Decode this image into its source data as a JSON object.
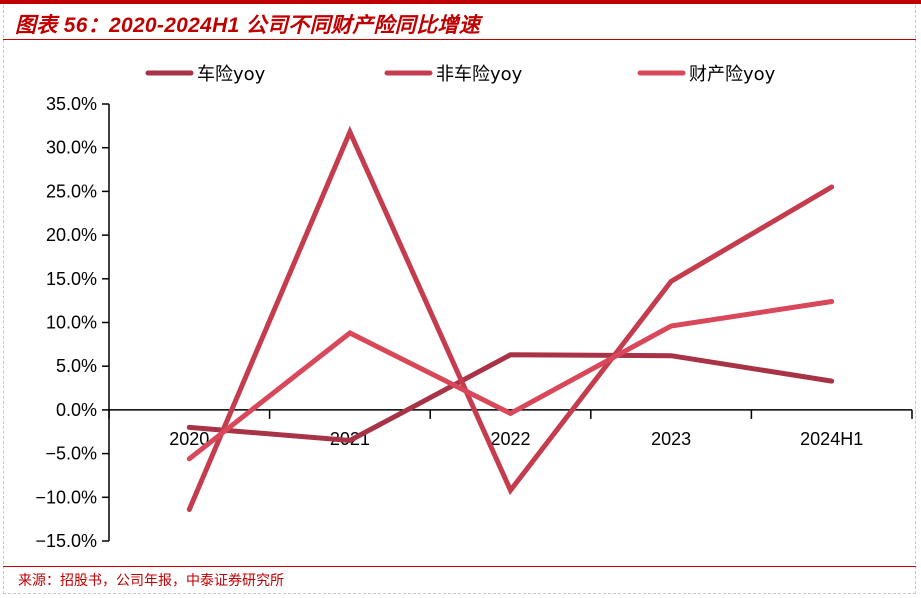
{
  "header": {
    "title": "图表 56：2020-2024H1 公司不同财产险同比增速"
  },
  "footer": {
    "source": "来源：招股书，公司年报，中泰证券研究所"
  },
  "colors": {
    "accent": "#c00000",
    "series_car": "#a83246",
    "series_noncar": "#c43c4e",
    "series_property": "#d9485a"
  },
  "chart_data": {
    "type": "line",
    "title": "2020-2024H1 公司不同财产险同比增速",
    "xlabel": "",
    "ylabel": "",
    "categories": [
      "2020",
      "2021",
      "2022",
      "2023",
      "2024H1"
    ],
    "series": [
      {
        "name": "车险yoy",
        "values": [
          -2.0,
          -3.5,
          6.3,
          6.2,
          3.3
        ]
      },
      {
        "name": "非车险yoy",
        "values": [
          -11.4,
          31.8,
          -9.2,
          14.7,
          25.5
        ]
      },
      {
        "name": "财产险yoy",
        "values": [
          -5.6,
          8.8,
          -0.4,
          9.6,
          12.4
        ]
      }
    ],
    "ylim": [
      -15,
      35
    ],
    "yticks": [
      "35.0%",
      "30.0%",
      "25.0%",
      "20.0%",
      "15.0%",
      "10.0%",
      "5.0%",
      "0.0%",
      "-5.0%",
      "-10.0%",
      "-15.0%"
    ],
    "grid": false,
    "legend_position": "top"
  }
}
